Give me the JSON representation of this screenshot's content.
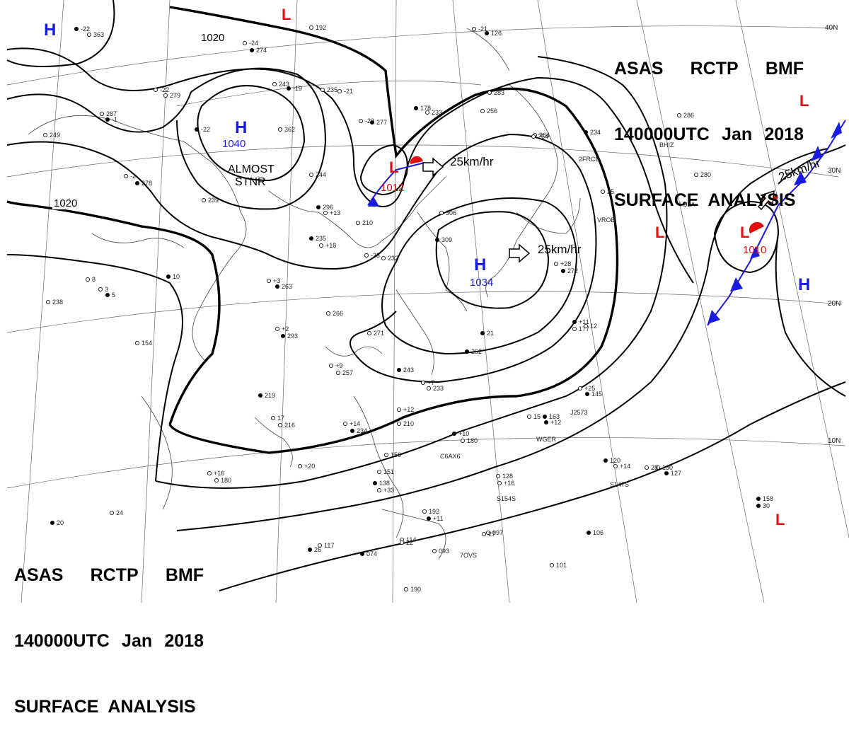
{
  "titles": {
    "top_right": {
      "line1": [
        "ASAS",
        "RCTP",
        "BMF"
      ],
      "line2": [
        "140000UTC",
        "Jan",
        "2018"
      ],
      "line3": "SURFACE  ANALYSIS"
    },
    "bottom_left": {
      "line1": [
        "ASAS",
        "RCTP",
        "BMF"
      ],
      "line2": [
        "140000UTC",
        "Jan",
        "2018"
      ],
      "line3": "SURFACE  ANALYSIS"
    }
  },
  "latitude_labels": [
    "40N",
    "30N",
    "20N",
    "10N"
  ],
  "isobar_labels": [
    "1020",
    "1020"
  ],
  "pressure_systems": {
    "highs": [
      {
        "symbol": "H",
        "value": ""
      },
      {
        "symbol": "H",
        "value": "1040"
      },
      {
        "symbol": "H",
        "value": "1034"
      },
      {
        "symbol": "H",
        "value": ""
      }
    ],
    "lows": [
      {
        "symbol": "L",
        "value": ""
      },
      {
        "symbol": "L",
        "value": "1012"
      },
      {
        "symbol": "L",
        "value": ""
      },
      {
        "symbol": "L",
        "value": ""
      },
      {
        "symbol": "L",
        "value": "1010"
      },
      {
        "symbol": "L",
        "value": ""
      }
    ]
  },
  "annotations": {
    "almost": "ALMOST",
    "stnr": "STNR"
  },
  "motion_vectors": [
    "25km/hr",
    "25km/hr",
    "25km/hr"
  ],
  "station_codes": [
    "BHIZ",
    "H9LA",
    "VROB",
    "2FRCB",
    "J2573",
    "WGER",
    "C6AX6",
    "S154S",
    "S147S",
    "7OVS"
  ],
  "station_obs": [
    "-22",
    "363",
    "-24",
    "274",
    "192",
    "-21",
    "126",
    "279",
    "287",
    "-1",
    "-22",
    "243",
    "-19",
    "235",
    "-21",
    "178",
    "233",
    "283",
    "-22",
    "362",
    "-23",
    "277",
    "256",
    "264",
    "234",
    "249",
    "-2",
    "278",
    "244",
    "239",
    "296",
    "+13",
    "210",
    "235",
    "+18",
    "306",
    "309",
    "-23",
    "232",
    "262",
    "264",
    "+3",
    "263",
    "266",
    "+2",
    "293",
    "271",
    "+28",
    "272",
    "+9",
    "257",
    "243",
    "+7",
    "233",
    "+11",
    "177",
    "+25",
    "145",
    "154",
    "238",
    "219",
    "216",
    "+14",
    "234",
    "+12",
    "210",
    "+10",
    "180",
    "+20",
    "163",
    "+16",
    "180",
    "+12",
    "156",
    "151",
    "138",
    "+33",
    "192",
    "+11",
    "128",
    "+16",
    "120",
    "+14",
    "130",
    "127",
    "114",
    "117",
    "074",
    "093",
    "097",
    "106",
    "101",
    "190",
    "158",
    "286",
    "280",
    "21",
    "25",
    "24",
    "20",
    "15",
    "22",
    "26",
    "27",
    "28",
    "30",
    "12",
    "17",
    "10",
    "8",
    "3",
    "5"
  ],
  "colors": {
    "high": "#1a1ae0",
    "low": "#e01010",
    "isobar": "#000000",
    "front_cold": "#1a1ae0",
    "front_warm": "#e01010"
  }
}
